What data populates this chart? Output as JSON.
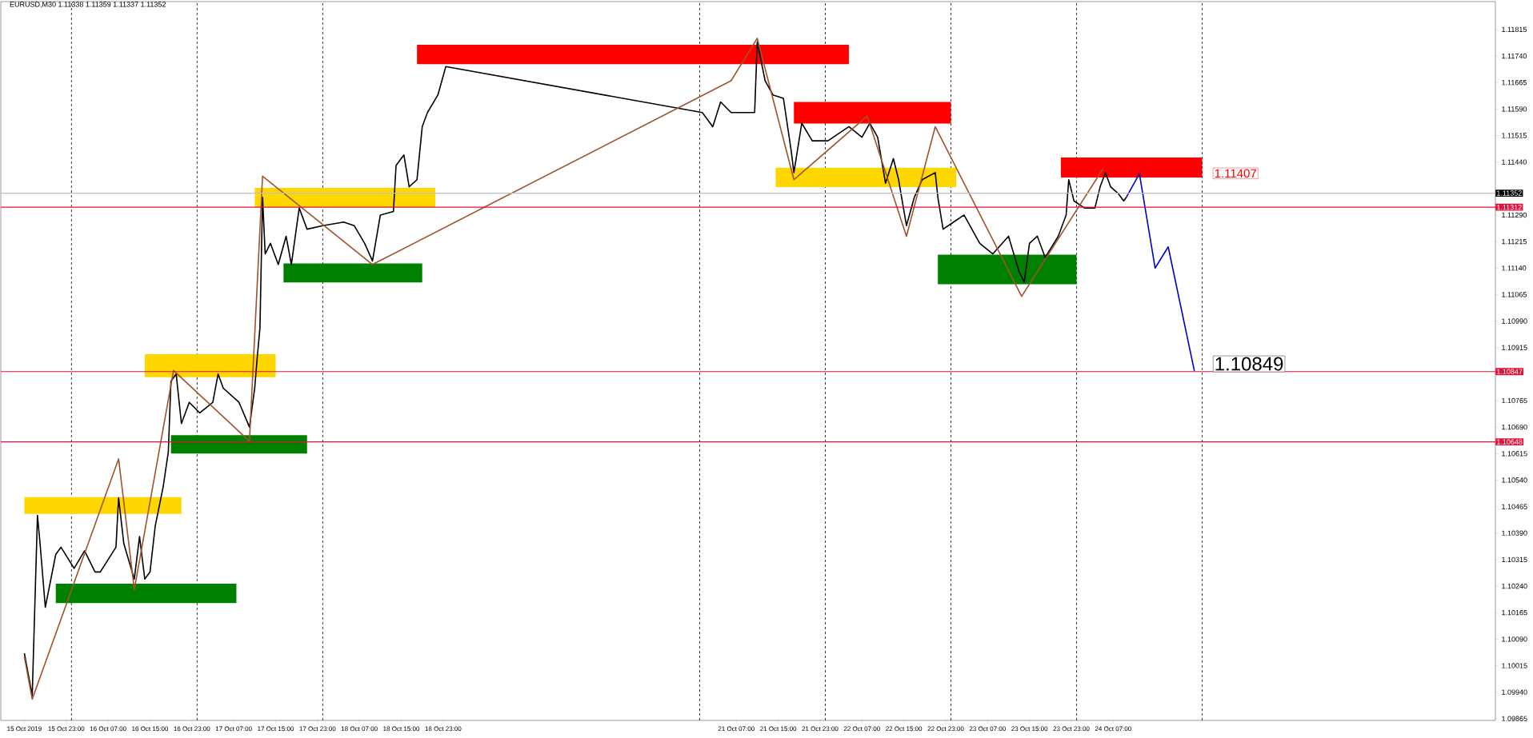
{
  "chart_data": {
    "type": "line",
    "title": "EURUSD,M30  1.11338 1.11359 1.11337 1.11352",
    "xlim": [
      "2019-10-15T10:30",
      "2019-10-27T08:00"
    ],
    "ylim": [
      1.0986,
      1.11894
    ],
    "xticks": [
      {
        "value": "2019-10-15T15:00",
        "label": "15 Oct 2019"
      },
      {
        "value": "2019-10-15T23:00",
        "label": "15 Oct 23:00"
      },
      {
        "value": "2019-10-16T07:00",
        "label": "16 Oct 07:00"
      },
      {
        "value": "2019-10-16T15:00",
        "label": "16 Oct 15:00"
      },
      {
        "value": "2019-10-16T23:00",
        "label": "16 Oct 23:00"
      },
      {
        "value": "2019-10-17T07:00",
        "label": "17 Oct 07:00"
      },
      {
        "value": "2019-10-17T15:00",
        "label": "17 Oct 15:00"
      },
      {
        "value": "2019-10-17T23:00",
        "label": "17 Oct 23:00"
      },
      {
        "value": "2019-10-18T07:00",
        "label": "18 Oct 07:00"
      },
      {
        "value": "2019-10-18T15:00",
        "label": "18 Oct 15:00"
      },
      {
        "value": "2019-10-18T23:00",
        "label": "18 Oct 23:00"
      },
      {
        "value": "2019-10-21T07:00",
        "label": "21 Oct 07:00"
      },
      {
        "value": "2019-10-21T15:00",
        "label": "21 Oct 15:00"
      },
      {
        "value": "2019-10-21T23:00",
        "label": "21 Oct 23:00"
      },
      {
        "value": "2019-10-22T07:00",
        "label": "22 Oct 07:00"
      },
      {
        "value": "2019-10-22T15:00",
        "label": "22 Oct 15:00"
      },
      {
        "value": "2019-10-22T23:00",
        "label": "22 Oct 23:00"
      },
      {
        "value": "2019-10-23T07:00",
        "label": "23 Oct 07:00"
      },
      {
        "value": "2019-10-23T15:00",
        "label": "23 Oct 15:00"
      },
      {
        "value": "2019-10-23T23:00",
        "label": "23 Oct 23:00"
      },
      {
        "value": "2019-10-24T07:00",
        "label": "24 Oct 07:00"
      }
    ],
    "yticks": [
      1.09865,
      {
        "value": 1.0994,
        "label": "1.09940"
      },
      1.10015,
      {
        "value": 1.1009,
        "label": "1.10090"
      },
      1.10165,
      {
        "value": 1.1024,
        "label": "1.10240"
      },
      1.10315,
      {
        "value": 1.1039,
        "label": "1.10390"
      },
      1.10465,
      {
        "value": 1.1054,
        "label": "1.10540"
      },
      1.10615,
      {
        "value": 1.1069,
        "label": "1.10690"
      },
      1.10765,
      1.10915,
      {
        "value": 1.1099,
        "label": "1.10990"
      },
      1.11065,
      {
        "value": 1.1114,
        "label": "1.11140"
      },
      1.11215,
      {
        "value": 1.1129,
        "label": "1.11290"
      },
      {
        "value": 1.1144,
        "label": "1.11440"
      },
      1.11515,
      {
        "value": 1.1159,
        "label": "1.11590"
      },
      1.11665,
      {
        "value": 1.1174,
        "label": "1.11740"
      },
      1.11815
    ],
    "series": [
      {
        "type": "area",
        "color": "#ffd700",
        "x": [
          "2019-10-15T15:00",
          "2019-10-16T21:00"
        ],
        "lower": [
          1.10444,
          1.10444
        ],
        "upper": [
          1.10492,
          1.10492
        ],
        "values": [
          null,
          null
        ]
      },
      {
        "type": "area",
        "color": "#008000",
        "x": [
          "2019-10-15T21:00",
          "2019-10-17T07:30"
        ],
        "lower": [
          1.10192,
          1.10192
        ],
        "upper": [
          1.10247,
          1.10247
        ],
        "values": [
          null,
          null
        ]
      },
      {
        "type": "area",
        "color": "#ffd700",
        "x": [
          "2019-10-16T14:00",
          "2019-10-17T15:00"
        ],
        "lower": [
          1.10831,
          1.10831
        ],
        "upper": [
          1.10896,
          1.10896
        ],
        "values": [
          null,
          null
        ]
      },
      {
        "type": "area",
        "color": "#008000",
        "x": [
          "2019-10-16T19:00",
          "2019-10-17T21:00"
        ],
        "lower": [
          1.10615,
          1.10615
        ],
        "upper": [
          1.10667,
          1.10667
        ],
        "values": [
          null,
          null
        ]
      },
      {
        "type": "area",
        "color": "#ffd700",
        "x": [
          "2019-10-17T11:00",
          "2019-10-18T21:30"
        ],
        "lower": [
          1.11312,
          1.11312
        ],
        "upper": [
          1.11367,
          1.11367
        ],
        "values": [
          null,
          null
        ]
      },
      {
        "type": "area",
        "color": "#008000",
        "x": [
          "2019-10-17T16:30",
          "2019-10-18T19:00"
        ],
        "lower": [
          1.11099,
          1.11099
        ],
        "upper": [
          1.11153,
          1.11153
        ],
        "values": [
          null,
          null
        ]
      },
      {
        "type": "area",
        "color": "#ff0000",
        "x": [
          "2019-10-18T18:00",
          "2019-10-22T04:30"
        ],
        "lower": [
          1.11717,
          1.11717
        ],
        "upper": [
          1.11772,
          1.11772
        ],
        "values": [
          null,
          null
        ]
      },
      {
        "type": "area",
        "color": "#ff0000",
        "x": [
          "2019-10-21T18:00",
          "2019-10-23T00:00"
        ],
        "lower": [
          1.11549,
          1.11549
        ],
        "upper": [
          1.1161,
          1.1161
        ],
        "values": [
          null,
          null
        ]
      },
      {
        "type": "area",
        "color": "#ffd700",
        "x": [
          "2019-10-21T14:30",
          "2019-10-23T01:00"
        ],
        "lower": [
          1.11369,
          1.11369
        ],
        "upper": [
          1.11424,
          1.11424
        ],
        "values": [
          null,
          null
        ]
      },
      {
        "type": "area",
        "color": "#008000",
        "x": [
          "2019-10-22T21:30",
          "2019-10-24T00:00"
        ],
        "lower": [
          1.11094,
          1.11094
        ],
        "upper": [
          1.11178,
          1.11178
        ],
        "values": [
          null,
          null
        ]
      },
      {
        "type": "area",
        "color": "#ff0000",
        "x": [
          "2019-10-23T21:00",
          "2019-10-25T00:00"
        ],
        "lower": [
          1.11396,
          1.11396
        ],
        "upper": [
          1.11453,
          1.11453
        ],
        "values": [
          null,
          null
        ]
      },
      {
        "color": "#000000",
        "x": [
          "2019-10-15T15:00",
          "2019-10-15T16:30",
          "2019-10-15T17:30",
          "2019-10-15T18:00",
          "2019-10-15T19:00",
          "2019-10-15T21:00",
          "2019-10-15T22:00",
          "2019-10-16T00:30",
          "2019-10-16T02:30",
          "2019-10-16T04:30",
          "2019-10-16T05:30",
          "2019-10-16T08:30",
          "2019-10-16T09:00",
          "2019-10-16T10:00",
          "2019-10-16T12:00",
          "2019-10-16T13:00",
          "2019-10-16T14:00",
          "2019-10-16T15:00",
          "2019-10-16T16:00",
          "2019-10-16T17:30",
          "2019-10-16T18:30",
          "2019-10-16T19:00",
          "2019-10-16T20:00",
          "2019-10-16T21:00",
          "2019-10-16T22:30",
          "2019-10-17T00:30",
          "2019-10-17T03:00",
          "2019-10-17T04:00",
          "2019-10-17T05:00",
          "2019-10-17T08:00",
          "2019-10-17T10:00",
          "2019-10-17T11:00",
          "2019-10-17T11:30",
          "2019-10-17T12:00",
          "2019-10-17T12:30",
          "2019-10-17T13:00",
          "2019-10-17T14:00",
          "2019-10-17T15:30",
          "2019-10-17T17:00",
          "2019-10-17T18:00",
          "2019-10-17T19:30",
          "2019-10-17T21:00",
          "2019-10-18T00:00",
          "2019-10-18T04:00",
          "2019-10-18T06:00",
          "2019-10-18T08:00",
          "2019-10-18T09:30",
          "2019-10-18T11:00",
          "2019-10-18T13:30",
          "2019-10-18T14:00",
          "2019-10-18T15:30",
          "2019-10-18T16:30",
          "2019-10-18T18:00",
          "2019-10-18T19:00",
          "2019-10-18T20:00",
          "2019-10-18T22:00",
          "2019-10-18T23:30",
          "2019-10-21T00:30",
          "2019-10-21T02:30",
          "2019-10-21T04:00",
          "2019-10-21T06:00",
          "2019-10-21T07:30",
          "2019-10-21T10:30",
          "2019-10-21T11:00",
          "2019-10-21T12:30",
          "2019-10-21T14:00",
          "2019-10-21T16:00",
          "2019-10-21T17:30",
          "2019-10-21T18:00",
          "2019-10-21T19:30",
          "2019-10-21T21:30",
          "2019-10-22T00:30",
          "2019-10-22T04:30",
          "2019-10-22T07:00",
          "2019-10-22T08:30",
          "2019-10-22T10:00",
          "2019-10-22T11:30",
          "2019-10-22T13:00",
          "2019-10-22T14:00",
          "2019-10-22T15:30",
          "2019-10-22T17:00",
          "2019-10-22T18:30",
          "2019-10-22T21:00",
          "2019-10-22T21:30",
          "2019-10-22T22:30",
          "2019-10-23T00:30",
          "2019-10-23T02:30",
          "2019-10-23T05:30",
          "2019-10-23T08:00",
          "2019-10-23T11:00",
          "2019-10-23T13:00",
          "2019-10-23T14:00",
          "2019-10-23T15:00",
          "2019-10-23T16:30",
          "2019-10-23T18:00",
          "2019-10-23T20:30",
          "2019-10-23T22:00",
          "2019-10-23T22:30",
          "2019-10-23T23:30",
          "2019-10-24T01:30",
          "2019-10-24T03:30",
          "2019-10-24T04:30",
          "2019-10-24T05:30",
          "2019-10-24T06:30",
          "2019-10-24T08:00",
          "2019-10-24T09:00",
          "2019-10-24T09:30"
        ],
        "values": [
          1.1005,
          1.0993,
          1.1044,
          1.1036,
          1.1018,
          1.1033,
          1.1035,
          1.1029,
          1.1034,
          1.1028,
          1.1028,
          1.1035,
          1.1049,
          1.1036,
          1.1026,
          1.1038,
          1.1026,
          1.1028,
          1.1041,
          1.1052,
          1.1062,
          1.1082,
          1.1084,
          1.107,
          1.1076,
          1.1073,
          1.1076,
          1.1084,
          1.108,
          1.1076,
          1.1069,
          1.108,
          1.1089,
          1.1097,
          1.1134,
          1.1118,
          1.1121,
          1.1115,
          1.1123,
          1.1115,
          1.1131,
          1.1125,
          1.1126,
          1.1127,
          1.1126,
          1.1121,
          1.1116,
          1.1129,
          1.113,
          1.1143,
          1.1146,
          1.1137,
          1.1139,
          1.1154,
          1.1158,
          1.1163,
          1.1171,
          1.1158,
          1.1154,
          1.1161,
          1.1158,
          1.1158,
          1.1158,
          1.1178,
          1.1167,
          1.1163,
          1.1162,
          1.1147,
          1.1141,
          1.1155,
          1.115,
          1.115,
          1.1154,
          1.1151,
          1.1155,
          1.1151,
          1.1138,
          1.1145,
          1.1139,
          1.1126,
          1.1134,
          1.1139,
          1.1141,
          1.1134,
          1.1125,
          1.1127,
          1.1129,
          1.1121,
          1.1118,
          1.1123,
          1.1113,
          1.111,
          1.1121,
          1.1123,
          1.1117,
          1.1123,
          1.1129,
          1.1139,
          1.1133,
          1.1131,
          1.1131,
          1.1137,
          1.1141,
          1.1137,
          1.1135,
          1.1133,
          1.1134
        ]
      },
      {
        "color": "#a0522d",
        "x": [
          "2019-10-15T15:00",
          "2019-10-15T16:30",
          "2019-10-16T09:00",
          "2019-10-16T12:00",
          "2019-10-16T19:30",
          "2019-10-17T10:00",
          "2019-10-17T12:30",
          "2019-10-18T09:30",
          "2019-10-21T06:00",
          "2019-10-21T11:00",
          "2019-10-21T18:00",
          "2019-10-22T08:00",
          "2019-10-22T15:30",
          "2019-10-22T21:00",
          "2019-10-23T13:30",
          "2019-10-24T05:00"
        ],
        "values": [
          1.1004,
          1.0992,
          1.106,
          1.1023,
          1.1085,
          1.1065,
          1.114,
          1.1115,
          1.1167,
          1.1179,
          1.1139,
          1.1157,
          1.1123,
          1.1154,
          1.1106,
          1.1142
        ]
      },
      {
        "color": "#0000cd",
        "x": [
          "2019-10-24T09:30",
          "2019-10-24T12:00",
          "2019-10-24T15:00",
          "2019-10-24T17:30",
          "2019-10-24T22:30"
        ],
        "values": [
          1.1134,
          1.11407,
          1.1114,
          1.112,
          1.10849
        ]
      }
    ],
    "ref_lines": [
      {
        "axis": "x",
        "value": "2019-10-16",
        "color": "#000000",
        "line_style": "dashed"
      },
      {
        "axis": "x",
        "value": "2019-10-17",
        "color": "#000000",
        "line_style": "dashed"
      },
      {
        "axis": "x",
        "value": "2019-10-18",
        "color": "#000000",
        "line_style": "dashed"
      },
      {
        "axis": "x",
        "value": "2019-10-21",
        "color": "#000000",
        "line_style": "dashed"
      },
      {
        "axis": "x",
        "value": "2019-10-22",
        "color": "#000000",
        "line_style": "dashed"
      },
      {
        "axis": "x",
        "value": "2019-10-23",
        "color": "#000000",
        "line_style": "dashed"
      },
      {
        "axis": "x",
        "value": "2019-10-24",
        "color": "#000000",
        "line_style": "dashed"
      },
      {
        "axis": "x",
        "value": "2019-10-25",
        "color": "#000000",
        "line_style": "dashed"
      },
      {
        "axis": "y",
        "value": 1.11352,
        "label": "1.11352",
        "color": "#c0c0c0",
        "line_style": "solid"
      },
      {
        "axis": "y",
        "value": 1.11312,
        "label": "1.11312",
        "color": "#dc143c",
        "line_style": "solid"
      },
      {
        "axis": "y",
        "value": 1.10847,
        "label": "1.10847",
        "color": "#dc143c",
        "line_style": "solid"
      },
      {
        "axis": "y",
        "value": 1.10648,
        "label": "1.10648",
        "color": "#dc143c",
        "line_style": "solid"
      }
    ],
    "annotations": [
      "1.11407",
      "1.10849"
    ]
  }
}
